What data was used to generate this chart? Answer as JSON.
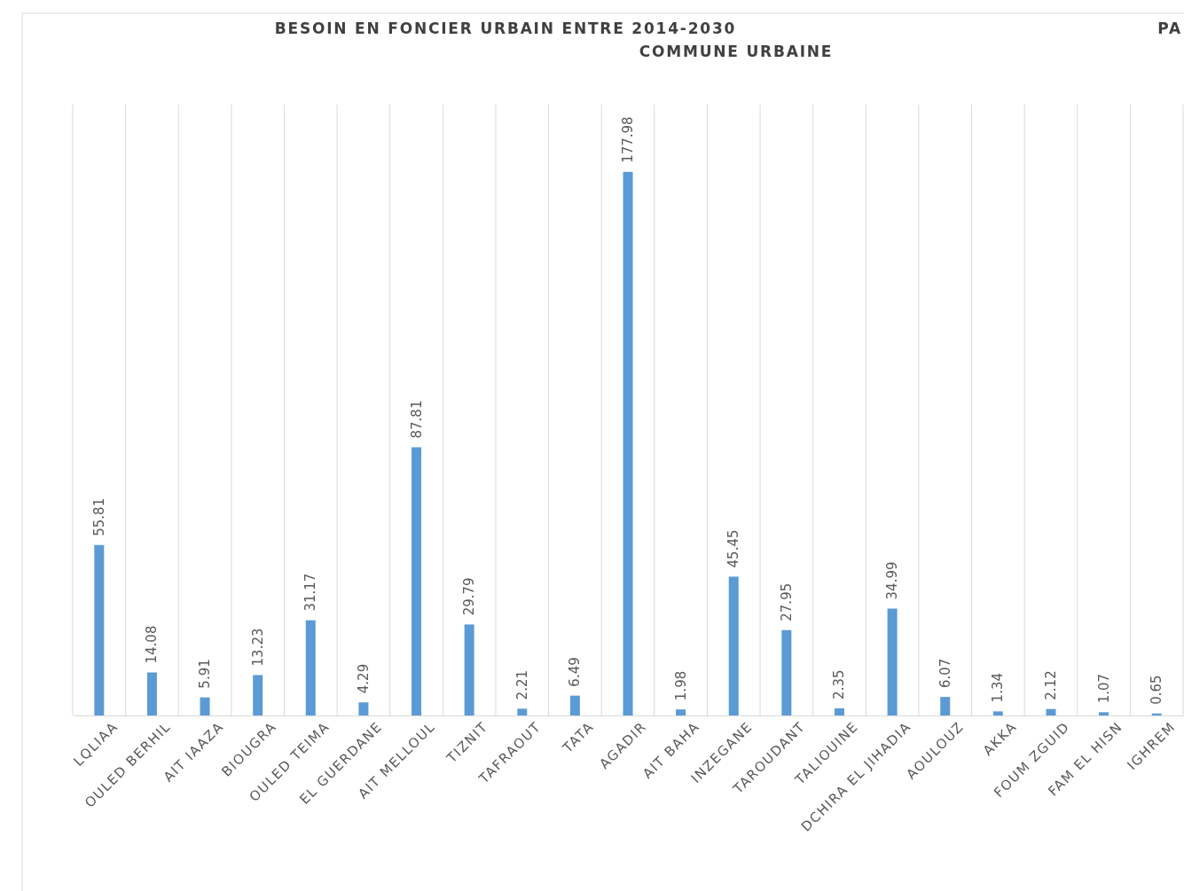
{
  "chart_data": {
    "type": "bar",
    "title": "BESOIN EN FONCIER URBAIN ENTRE 2014-2030",
    "subtitle": "COMMUNE URBAINE",
    "annotations": [
      "PA"
    ],
    "categories": [
      "LQLIAA",
      "OULED BERHIL",
      "AIT IAAZA",
      "BIOUGRA",
      "OULED TEIMA",
      "EL GUERDANE",
      "AIT MELLOUL",
      "TIZNIT",
      "TAFRAOUT",
      "TATA",
      "AGADIR",
      "AIT BAHA",
      "INZEGANE",
      "TAROUDANT",
      "TALIOUINE",
      "DCHIRA EL JIHADIA",
      "AOULOUZ",
      "AKKA",
      "FOUM ZGUID",
      "FAM EL HISN",
      "IGHREM"
    ],
    "values": [
      55.81,
      14.08,
      5.91,
      13.23,
      31.17,
      4.29,
      87.81,
      29.79,
      2.21,
      6.49,
      177.98,
      1.98,
      45.45,
      27.95,
      2.35,
      34.99,
      6.07,
      1.34,
      2.12,
      1.07,
      0.65
    ],
    "color": "#5b9bd5",
    "ylim": [
      0,
      200
    ],
    "data_labels": true,
    "grid": "x",
    "tick_labels": "x"
  }
}
